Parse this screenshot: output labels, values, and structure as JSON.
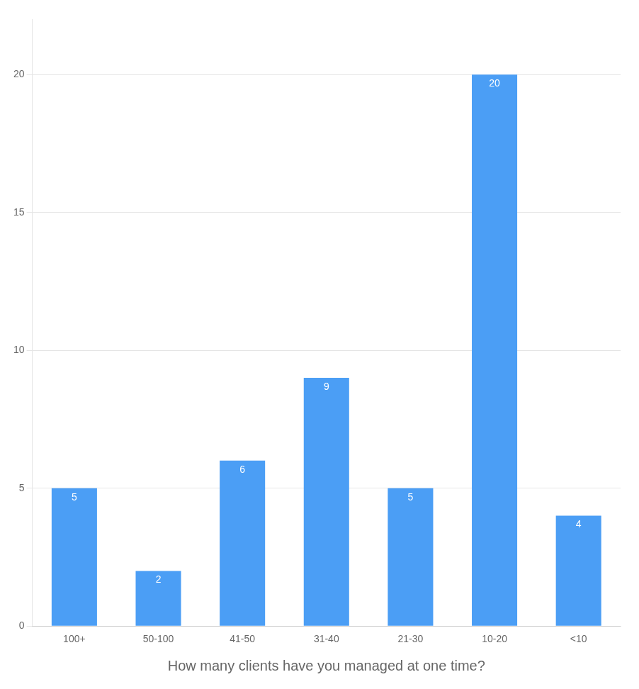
{
  "chart_data": {
    "type": "bar",
    "xlabel": "How many clients have you managed at one time?",
    "categories": [
      "100+",
      "50-100",
      "41-50",
      "31-40",
      "21-30",
      "10-20",
      "<10"
    ],
    "values": [
      5,
      2,
      6,
      9,
      5,
      20,
      4
    ],
    "color": "#4B9EF5",
    "ylim": [
      0,
      22
    ],
    "yticks": [
      0,
      5,
      10,
      15,
      20
    ],
    "grid": true,
    "data_labels": true
  }
}
